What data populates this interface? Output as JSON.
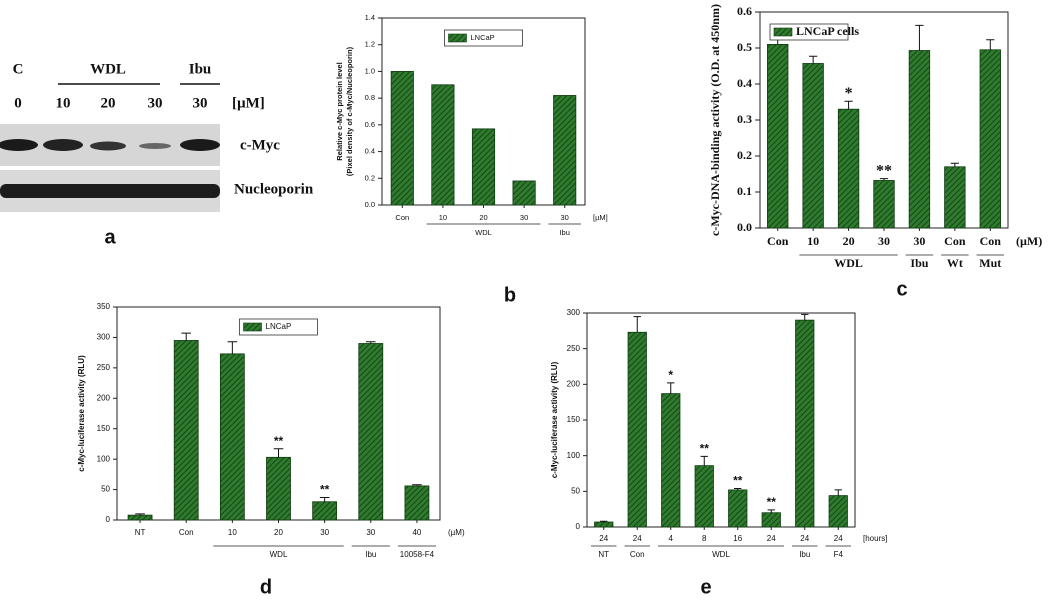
{
  "panel_labels": [
    "a",
    "b",
    "c",
    "d",
    "e"
  ],
  "blot": {
    "treatments": [
      "C",
      "WDL",
      "Ibu"
    ],
    "doses": [
      "0",
      "10",
      "20",
      "30",
      "30"
    ],
    "unit": "[µM]",
    "rows": [
      "c-Myc",
      "Nucleoporin"
    ]
  },
  "chart_data": [
    {
      "type": "bar",
      "y_label": [
        "Relative c-Myc protein level",
        "(Pixel density of c-Myc/Nucleoporin)"
      ],
      "categories": [
        "Con",
        "10",
        "20",
        "30",
        "30"
      ],
      "unit": "[µM]",
      "groups": [
        {
          "label": "WDL",
          "start": 1,
          "end": 3
        },
        {
          "label": "Ibu",
          "start": 4,
          "end": 4
        }
      ],
      "series": [
        {
          "name": "LNCaP",
          "color": "#2f7a2f",
          "values": [
            1.0,
            0.9,
            0.57,
            0.18,
            0.82
          ]
        }
      ],
      "ylim": [
        0,
        1.4
      ],
      "yticks": [
        {
          "value": 0,
          "label": "0.0"
        },
        {
          "value": 0.2,
          "label": "0.2"
        },
        {
          "value": 0.4,
          "label": "0.4"
        },
        {
          "value": 0.6,
          "label": "0.6"
        },
        {
          "value": 0.8,
          "label": "0.8"
        },
        {
          "value": 1.0,
          "label": "1.0"
        },
        {
          "value": 1.2,
          "label": "1.2"
        },
        {
          "value": 1.4,
          "label": "1.4"
        }
      ],
      "grid": false,
      "legend": "top-center"
    },
    {
      "type": "bar",
      "y_label": "c-Myc-DNA-binding activity (O.D. at 450nm)",
      "categories": [
        "Con",
        "10",
        "20",
        "30",
        "30",
        "Con",
        "Con"
      ],
      "unit": "(µM)",
      "groups": [
        {
          "label": "WDL",
          "start": 1,
          "end": 3
        },
        {
          "label": "Ibu",
          "start": 4,
          "end": 4
        },
        {
          "label": "Wt",
          "start": 5,
          "end": 5
        },
        {
          "label": "Mut",
          "start": 6,
          "end": 6
        }
      ],
      "series": [
        {
          "name": "LNCaP cells",
          "color": "#2f7a2f",
          "values": [
            0.51,
            0.457,
            0.33,
            0.132,
            0.493,
            0.17,
            0.495
          ],
          "errors": [
            0.035,
            0.02,
            0.022,
            0.005,
            0.07,
            0.01,
            0.028
          ],
          "annotations": [
            null,
            null,
            "*",
            "**",
            null,
            null,
            null
          ]
        }
      ],
      "ylim": [
        0,
        0.6
      ],
      "yticks": [
        {
          "value": 0,
          "label": "0.0"
        },
        {
          "value": 0.1,
          "label": "0.1"
        },
        {
          "value": 0.2,
          "label": "0.2"
        },
        {
          "value": 0.3,
          "label": "0.3"
        },
        {
          "value": 0.4,
          "label": "0.4"
        },
        {
          "value": 0.5,
          "label": "0.5"
        },
        {
          "value": 0.6,
          "label": "0.6"
        }
      ],
      "grid": false,
      "legend": "top-left"
    },
    {
      "type": "bar",
      "y_label": "c-Myc-luciferase activity (RLU)",
      "categories": [
        "NT",
        "Con",
        "10",
        "20",
        "30",
        "30",
        "40"
      ],
      "unit": "(µM)",
      "groups": [
        {
          "label": "WDL",
          "start": 2,
          "end": 4
        },
        {
          "label": "Ibu",
          "start": 5,
          "end": 5
        },
        {
          "label": "10058-F4",
          "start": 6,
          "end": 6
        }
      ],
      "series": [
        {
          "name": "LNCaP",
          "color": "#2f7a2f",
          "values": [
            8,
            295,
            273,
            103,
            30,
            290,
            56
          ],
          "errors": [
            2,
            12,
            20,
            14,
            7,
            3,
            2
          ],
          "annotations": [
            null,
            null,
            null,
            "**",
            "**",
            null,
            null
          ]
        }
      ],
      "ylim": [
        0,
        350
      ],
      "yticks": [
        0,
        50,
        100,
        150,
        200,
        250,
        300,
        350
      ],
      "grid": false,
      "legend": "top-center"
    },
    {
      "type": "bar",
      "y_label": "c-Myc-luciferase activity (RLU)",
      "categories": [
        "24",
        "24",
        "4",
        "8",
        "16",
        "24",
        "24",
        "24"
      ],
      "unit": "[hours]",
      "groups": [
        {
          "label": "NT",
          "start": 0,
          "end": 0
        },
        {
          "label": "Con",
          "start": 1,
          "end": 1
        },
        {
          "label": "WDL",
          "start": 2,
          "end": 5
        },
        {
          "label": "Ibu",
          "start": 6,
          "end": 6
        },
        {
          "label": "F4",
          "start": 7,
          "end": 7
        }
      ],
      "series": [
        {
          "color": "#2f7a2f",
          "values": [
            7,
            273,
            187,
            86,
            52,
            20,
            290,
            44
          ],
          "errors": [
            1,
            22,
            15,
            13,
            2,
            4,
            8,
            8
          ],
          "annotations": [
            null,
            null,
            "*",
            "**",
            "**",
            "**",
            null,
            null
          ]
        }
      ],
      "ylim": [
        0,
        300
      ],
      "yticks": [
        0,
        50,
        100,
        150,
        200,
        250,
        300
      ],
      "grid": false
    }
  ]
}
